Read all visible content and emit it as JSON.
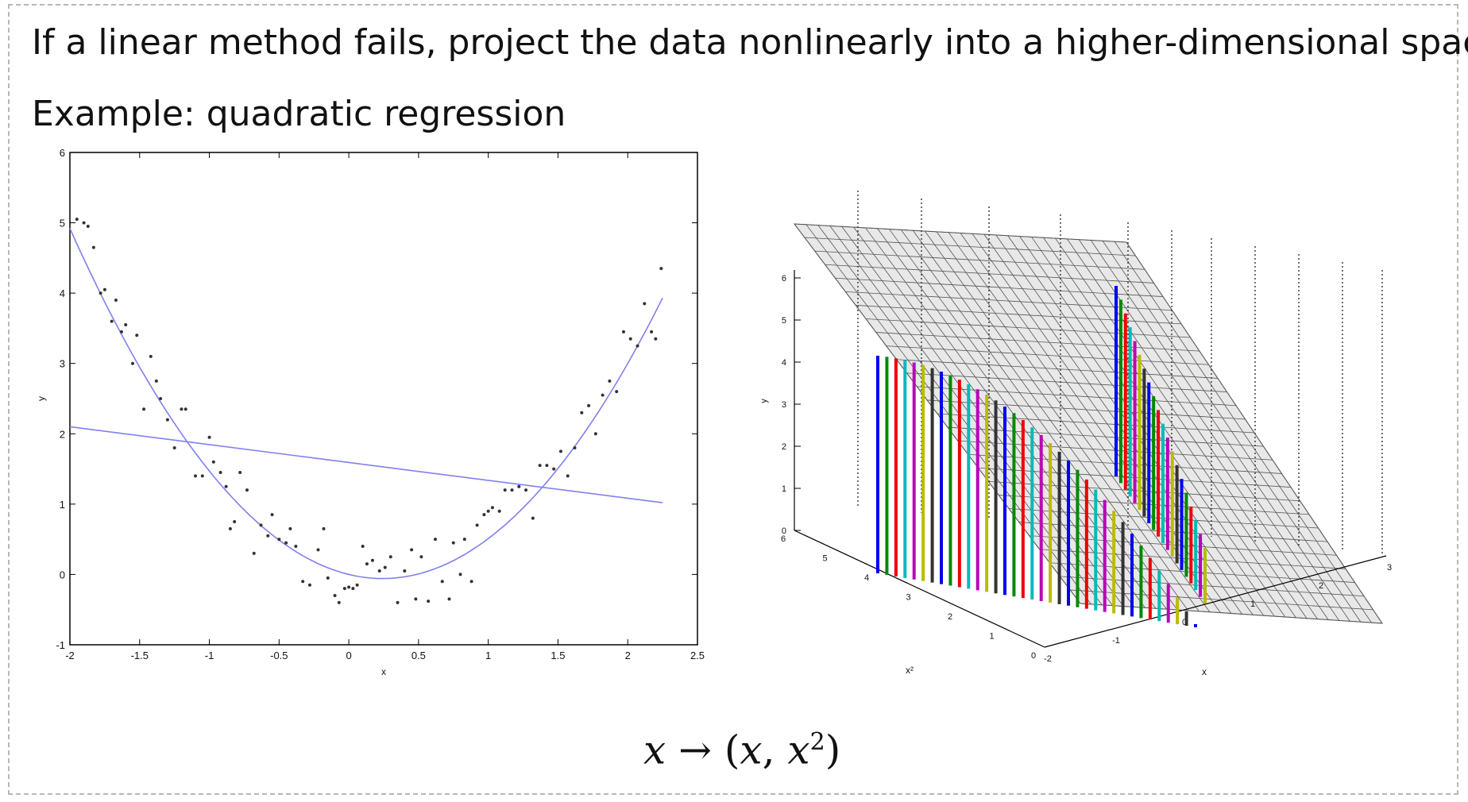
{
  "slide": {
    "line1": "If a linear method fails, project the data nonlinearly into a higher-dimensional space.",
    "line2": "Example: quadratic regression",
    "formula": {
      "var": "x",
      "arrow": " → (",
      "var2": "x",
      "sep": ", ",
      "var3": "x",
      "exp": "2",
      "close": ")"
    }
  },
  "chart_data": [
    {
      "type": "scatter",
      "xlabel": "x",
      "ylabel": "y",
      "xlim": [
        -2,
        2.5
      ],
      "ylim": [
        -1,
        6
      ],
      "xticks": [
        "-2",
        "-1.5",
        "-1",
        "-0.5",
        "0",
        "0.5",
        "1",
        "1.5",
        "2",
        "2.5"
      ],
      "yticks": [
        "-1",
        "0",
        "1",
        "2",
        "3",
        "4",
        "5",
        "6"
      ],
      "points": [
        [
          -1.95,
          5.05
        ],
        [
          -1.9,
          5.0
        ],
        [
          -1.87,
          4.95
        ],
        [
          -1.83,
          4.65
        ],
        [
          -1.78,
          4.0
        ],
        [
          -1.75,
          4.05
        ],
        [
          -1.7,
          3.6
        ],
        [
          -1.67,
          3.9
        ],
        [
          -1.63,
          3.45
        ],
        [
          -1.6,
          3.55
        ],
        [
          -1.55,
          3.0
        ],
        [
          -1.52,
          3.4
        ],
        [
          -1.47,
          2.35
        ],
        [
          -1.42,
          3.1
        ],
        [
          -1.38,
          2.75
        ],
        [
          -1.35,
          2.5
        ],
        [
          -1.3,
          2.2
        ],
        [
          -1.25,
          1.8
        ],
        [
          -1.2,
          2.35
        ],
        [
          -1.17,
          2.35
        ],
        [
          -1.1,
          1.4
        ],
        [
          -1.05,
          1.4
        ],
        [
          -1.0,
          1.95
        ],
        [
          -0.97,
          1.6
        ],
        [
          -0.92,
          1.45
        ],
        [
          -0.88,
          1.25
        ],
        [
          -0.85,
          0.65
        ],
        [
          -0.82,
          0.75
        ],
        [
          -0.78,
          1.45
        ],
        [
          -0.73,
          1.2
        ],
        [
          -0.68,
          0.3
        ],
        [
          -0.63,
          0.7
        ],
        [
          -0.58,
          0.55
        ],
        [
          -0.55,
          0.85
        ],
        [
          -0.5,
          0.5
        ],
        [
          -0.45,
          0.45
        ],
        [
          -0.42,
          0.65
        ],
        [
          -0.38,
          0.4
        ],
        [
          -0.33,
          -0.1
        ],
        [
          -0.28,
          -0.15
        ],
        [
          -0.22,
          0.35
        ],
        [
          -0.18,
          0.65
        ],
        [
          -0.15,
          -0.05
        ],
        [
          -0.1,
          -0.3
        ],
        [
          -0.07,
          -0.4
        ],
        [
          -0.03,
          -0.2
        ],
        [
          0.0,
          -0.18
        ],
        [
          0.03,
          -0.2
        ],
        [
          0.06,
          -0.15
        ],
        [
          0.1,
          0.4
        ],
        [
          0.13,
          0.15
        ],
        [
          0.17,
          0.2
        ],
        [
          0.22,
          0.05
        ],
        [
          0.26,
          0.1
        ],
        [
          0.3,
          0.25
        ],
        [
          0.35,
          -0.4
        ],
        [
          0.4,
          0.05
        ],
        [
          0.45,
          0.35
        ],
        [
          0.48,
          -0.35
        ],
        [
          0.52,
          0.25
        ],
        [
          0.57,
          -0.38
        ],
        [
          0.62,
          0.5
        ],
        [
          0.67,
          -0.1
        ],
        [
          0.72,
          -0.35
        ],
        [
          0.75,
          0.45
        ],
        [
          0.8,
          0.0
        ],
        [
          0.83,
          0.5
        ],
        [
          0.88,
          -0.1
        ],
        [
          0.92,
          0.7
        ],
        [
          0.97,
          0.85
        ],
        [
          1.0,
          0.9
        ],
        [
          1.03,
          0.95
        ],
        [
          1.08,
          0.9
        ],
        [
          1.12,
          1.2
        ],
        [
          1.17,
          1.2
        ],
        [
          1.22,
          1.25
        ],
        [
          1.27,
          1.2
        ],
        [
          1.32,
          0.8
        ],
        [
          1.37,
          1.55
        ],
        [
          1.42,
          1.55
        ],
        [
          1.47,
          1.5
        ],
        [
          1.52,
          1.75
        ],
        [
          1.57,
          1.4
        ],
        [
          1.62,
          1.8
        ],
        [
          1.67,
          2.3
        ],
        [
          1.72,
          2.4
        ],
        [
          1.77,
          2.0
        ],
        [
          1.82,
          2.55
        ],
        [
          1.87,
          2.75
        ],
        [
          1.92,
          2.6
        ],
        [
          1.97,
          3.45
        ],
        [
          2.02,
          3.35
        ],
        [
          2.07,
          3.25
        ],
        [
          2.12,
          3.85
        ],
        [
          2.17,
          3.45
        ],
        [
          2.2,
          3.35
        ],
        [
          2.24,
          4.35
        ]
      ],
      "linear_fit": {
        "x": [
          -2,
          2.25
        ],
        "y": [
          2.1,
          1.02
        ]
      },
      "quadratic_fit": {
        "a": 0.99,
        "b": -0.48,
        "c": 0.0
      },
      "fit_color": "#8080ee",
      "point_color": "#333333"
    },
    {
      "type": "3d-surface-stems",
      "xlabel": "x",
      "ylabel": "y",
      "zlabel": "x²",
      "x_ticks": [
        "-2",
        "-1",
        "0",
        "1",
        "2",
        "3"
      ],
      "z_ticks": [
        "0",
        "1",
        "2",
        "3",
        "4",
        "5",
        "6"
      ],
      "y_ticks": [
        "0",
        "1",
        "2",
        "3",
        "4",
        "5",
        "6"
      ],
      "stem_colors": [
        "#0000ee",
        "#008800",
        "#ee0000",
        "#00bbbb",
        "#bb00bb",
        "#bbbb00",
        "#333333"
      ],
      "grid_color": "#555555",
      "surface_color": "#e8e8e8"
    }
  ]
}
